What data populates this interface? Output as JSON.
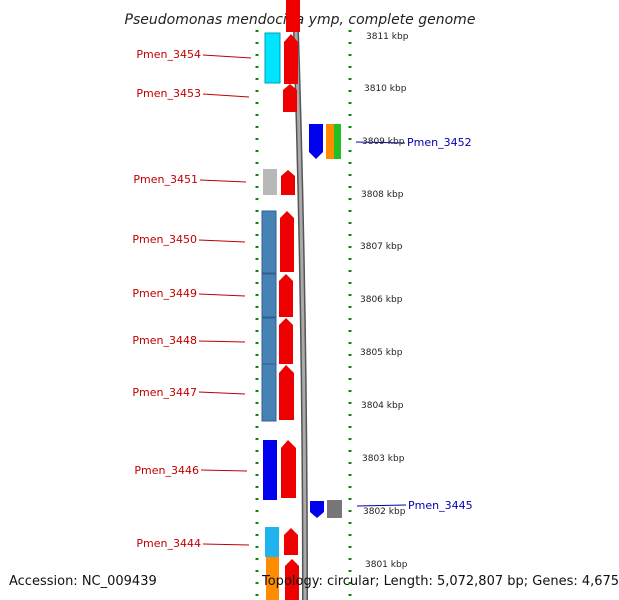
{
  "title": "Pseudomonas mendocina ymp, complete genome",
  "accession": "Accession: NC_009439",
  "topology": "Topology: circular; Length: 5,072,807 bp; Genes: 4,675",
  "kbp_labels": [
    "3811 kbp",
    "3810 kbp",
    "3809 kbp",
    "3808 kbp",
    "3807 kbp",
    "3806 kbp",
    "3805 kbp",
    "3804 kbp",
    "3803 kbp",
    "3802 kbp",
    "3801 kbp"
  ],
  "genes_left": [
    "Pmen_3454",
    "Pmen_3453",
    "Pmen_3451",
    "Pmen_3450",
    "Pmen_3449",
    "Pmen_3448",
    "Pmen_3447",
    "Pmen_3446",
    "Pmen_3444"
  ],
  "genes_right": [
    "Pmen_3452",
    "Pmen_3445"
  ],
  "colors": {
    "forward_strand": "#ee0000",
    "reverse_strand": "#0000ee",
    "left_label": "#c00000",
    "right_label": "#0000b0",
    "scale_dots": "#0a8a0a",
    "cyan": "#00e5ff",
    "steelblue": "#4682b4",
    "grey": "#b8b8b8",
    "orange": "#ff8c00",
    "green": "#22c022",
    "lightblue": "#20b4ee",
    "darkgrey": "#777777"
  }
}
